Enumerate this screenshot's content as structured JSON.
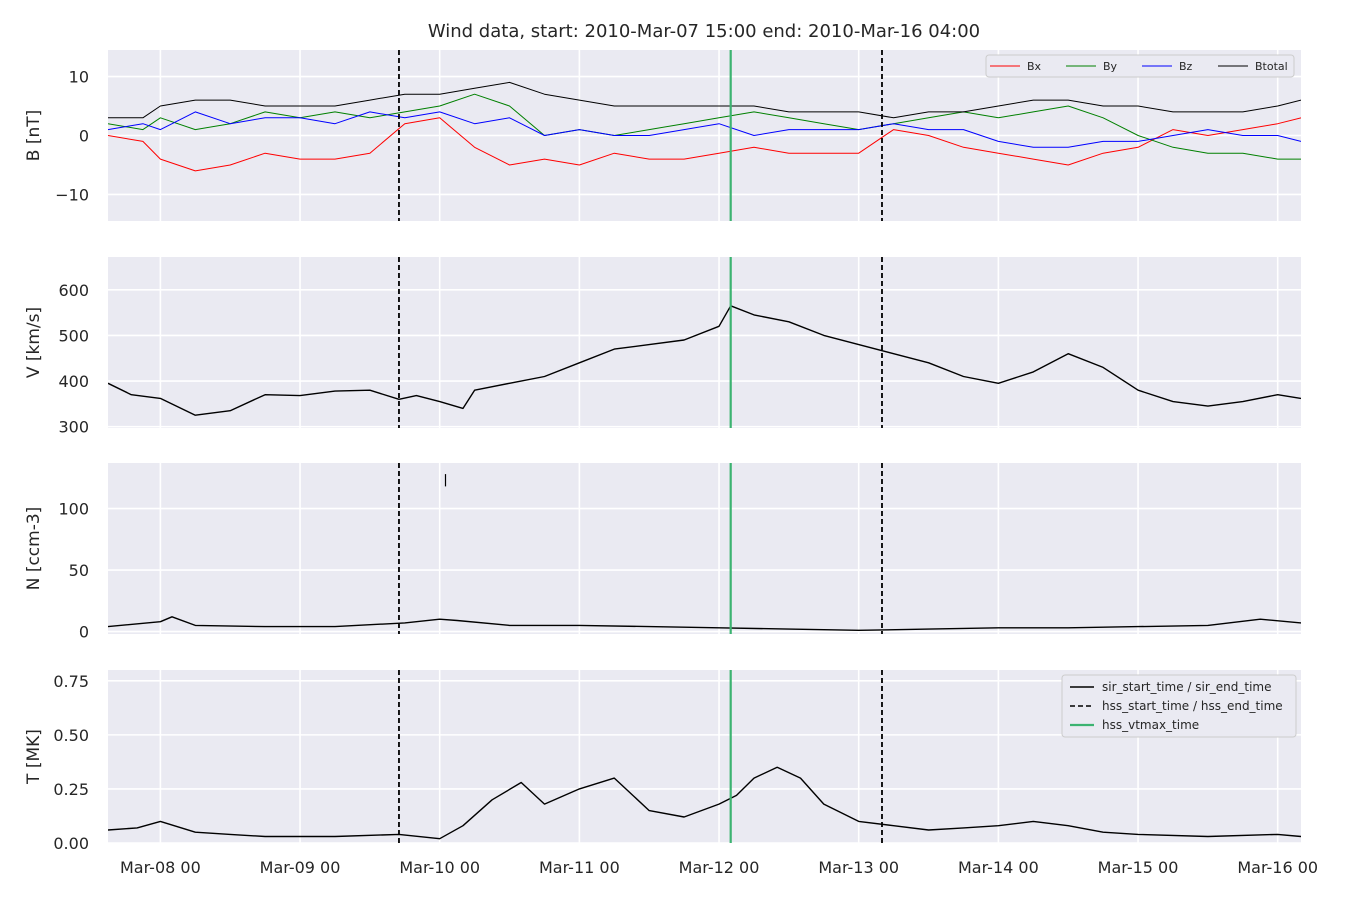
{
  "chart_data": {
    "title": "Wind data, start: 2010-Mar-07 15:00  end: 2010-Mar-16 04:00",
    "x_range": [
      "2010-03-07T15:00",
      "2010-03-16T04:00"
    ],
    "x_ticks": [
      {
        "t": "2010-03-08T00:00",
        "label": "Mar-08 00"
      },
      {
        "t": "2010-03-09T00:00",
        "label": "Mar-09 00"
      },
      {
        "t": "2010-03-10T00:00",
        "label": "Mar-10 00"
      },
      {
        "t": "2010-03-11T00:00",
        "label": "Mar-11 00"
      },
      {
        "t": "2010-03-12T00:00",
        "label": "Mar-12 00"
      },
      {
        "t": "2010-03-13T00:00",
        "label": "Mar-13 00"
      },
      {
        "t": "2010-03-14T00:00",
        "label": "Mar-14 00"
      },
      {
        "t": "2010-03-15T00:00",
        "label": "Mar-15 00"
      },
      {
        "t": "2010-03-16T00:00",
        "label": "Mar-16 00"
      }
    ],
    "vertical_markers": [
      {
        "t": "2010-03-09T17:00",
        "style": "dashed",
        "color": "#000000",
        "group": "hss"
      },
      {
        "t": "2010-03-13T04:00",
        "style": "dashed",
        "color": "#000000",
        "group": "hss"
      },
      {
        "t": "2010-03-12T02:00",
        "style": "solid",
        "color": "#3cb371",
        "group": "vtmax"
      }
    ],
    "panels": [
      {
        "type": "line",
        "ylabel": "B [nT]",
        "ylim": [
          -14.5,
          14.5
        ],
        "yticks": [
          {
            "v": 10,
            "label": "10"
          },
          {
            "v": 0,
            "label": "0"
          },
          {
            "v": -10,
            "label": "−10"
          }
        ],
        "legend": {
          "position": "top-right",
          "layout": "row",
          "entries": [
            "Bx",
            "By",
            "Bz",
            "Btotal"
          ]
        },
        "series": [
          {
            "name": "Bx",
            "color": "#ff0000",
            "width": 1,
            "x": [
              "2010-03-07T15:00",
              "2010-03-07T21:00",
              "2010-03-08T00:00",
              "2010-03-08T06:00",
              "2010-03-08T12:00",
              "2010-03-08T18:00",
              "2010-03-09T00:00",
              "2010-03-09T06:00",
              "2010-03-09T12:00",
              "2010-03-09T18:00",
              "2010-03-10T00:00",
              "2010-03-10T06:00",
              "2010-03-10T12:00",
              "2010-03-10T18:00",
              "2010-03-11T00:00",
              "2010-03-11T06:00",
              "2010-03-11T12:00",
              "2010-03-11T18:00",
              "2010-03-12T00:00",
              "2010-03-12T06:00",
              "2010-03-12T12:00",
              "2010-03-12T18:00",
              "2010-03-13T00:00",
              "2010-03-13T06:00",
              "2010-03-13T12:00",
              "2010-03-13T18:00",
              "2010-03-14T00:00",
              "2010-03-14T06:00",
              "2010-03-14T12:00",
              "2010-03-14T18:00",
              "2010-03-15T00:00",
              "2010-03-15T06:00",
              "2010-03-15T12:00",
              "2010-03-15T18:00",
              "2010-03-16T00:00",
              "2010-03-16T04:00"
            ],
            "values": [
              0,
              -1,
              -4,
              -6,
              -5,
              -3,
              -4,
              -4,
              -3,
              2,
              3,
              -2,
              -5,
              -4,
              -5,
              -3,
              -4,
              -4,
              -3,
              -2,
              -3,
              -3,
              -3,
              1,
              0,
              -2,
              -3,
              -4,
              -5,
              -3,
              -2,
              1,
              0,
              1,
              2,
              3
            ]
          },
          {
            "name": "By",
            "color": "#008000",
            "width": 1,
            "x": [
              "2010-03-07T15:00",
              "2010-03-07T21:00",
              "2010-03-08T00:00",
              "2010-03-08T06:00",
              "2010-03-08T12:00",
              "2010-03-08T18:00",
              "2010-03-09T00:00",
              "2010-03-09T06:00",
              "2010-03-09T12:00",
              "2010-03-09T18:00",
              "2010-03-10T00:00",
              "2010-03-10T06:00",
              "2010-03-10T12:00",
              "2010-03-10T18:00",
              "2010-03-11T00:00",
              "2010-03-11T06:00",
              "2010-03-11T12:00",
              "2010-03-11T18:00",
              "2010-03-12T00:00",
              "2010-03-12T06:00",
              "2010-03-12T12:00",
              "2010-03-12T18:00",
              "2010-03-13T00:00",
              "2010-03-13T06:00",
              "2010-03-13T12:00",
              "2010-03-13T18:00",
              "2010-03-14T00:00",
              "2010-03-14T06:00",
              "2010-03-14T12:00",
              "2010-03-14T18:00",
              "2010-03-15T00:00",
              "2010-03-15T06:00",
              "2010-03-15T12:00",
              "2010-03-15T18:00",
              "2010-03-16T00:00",
              "2010-03-16T04:00"
            ],
            "values": [
              2,
              1,
              3,
              1,
              2,
              4,
              3,
              4,
              3,
              4,
              5,
              7,
              5,
              0,
              1,
              0,
              1,
              2,
              3,
              4,
              3,
              2,
              1,
              2,
              3,
              4,
              3,
              4,
              5,
              3,
              0,
              -2,
              -3,
              -3,
              -4,
              -4
            ]
          },
          {
            "name": "Bz",
            "color": "#0000ff",
            "width": 1,
            "x": [
              "2010-03-07T15:00",
              "2010-03-07T21:00",
              "2010-03-08T00:00",
              "2010-03-08T06:00",
              "2010-03-08T12:00",
              "2010-03-08T18:00",
              "2010-03-09T00:00",
              "2010-03-09T06:00",
              "2010-03-09T12:00",
              "2010-03-09T18:00",
              "2010-03-10T00:00",
              "2010-03-10T06:00",
              "2010-03-10T12:00",
              "2010-03-10T18:00",
              "2010-03-11T00:00",
              "2010-03-11T06:00",
              "2010-03-11T12:00",
              "2010-03-11T18:00",
              "2010-03-12T00:00",
              "2010-03-12T06:00",
              "2010-03-12T12:00",
              "2010-03-12T18:00",
              "2010-03-13T00:00",
              "2010-03-13T06:00",
              "2010-03-13T12:00",
              "2010-03-13T18:00",
              "2010-03-14T00:00",
              "2010-03-14T06:00",
              "2010-03-14T12:00",
              "2010-03-14T18:00",
              "2010-03-15T00:00",
              "2010-03-15T06:00",
              "2010-03-15T12:00",
              "2010-03-15T18:00",
              "2010-03-16T00:00",
              "2010-03-16T04:00"
            ],
            "values": [
              1,
              2,
              1,
              4,
              2,
              3,
              3,
              2,
              4,
              3,
              4,
              2,
              3,
              0,
              1,
              0,
              0,
              1,
              2,
              0,
              1,
              1,
              1,
              2,
              1,
              1,
              -1,
              -2,
              -2,
              -1,
              -1,
              0,
              1,
              0,
              0,
              -1
            ]
          },
          {
            "name": "Btotal",
            "color": "#000000",
            "width": 1,
            "x": [
              "2010-03-07T15:00",
              "2010-03-07T21:00",
              "2010-03-08T00:00",
              "2010-03-08T06:00",
              "2010-03-08T12:00",
              "2010-03-08T18:00",
              "2010-03-09T00:00",
              "2010-03-09T06:00",
              "2010-03-09T12:00",
              "2010-03-09T18:00",
              "2010-03-10T00:00",
              "2010-03-10T06:00",
              "2010-03-10T12:00",
              "2010-03-10T18:00",
              "2010-03-11T00:00",
              "2010-03-11T06:00",
              "2010-03-11T12:00",
              "2010-03-11T18:00",
              "2010-03-12T00:00",
              "2010-03-12T06:00",
              "2010-03-12T12:00",
              "2010-03-12T18:00",
              "2010-03-13T00:00",
              "2010-03-13T06:00",
              "2010-03-13T12:00",
              "2010-03-13T18:00",
              "2010-03-14T00:00",
              "2010-03-14T06:00",
              "2010-03-14T12:00",
              "2010-03-14T18:00",
              "2010-03-15T00:00",
              "2010-03-15T06:00",
              "2010-03-15T12:00",
              "2010-03-15T18:00",
              "2010-03-16T00:00",
              "2010-03-16T04:00"
            ],
            "values": [
              3,
              3,
              5,
              6,
              6,
              5,
              5,
              5,
              6,
              7,
              7,
              8,
              9,
              7,
              6,
              5,
              5,
              5,
              5,
              5,
              4,
              4,
              4,
              3,
              4,
              4,
              5,
              6,
              6,
              5,
              5,
              4,
              4,
              4,
              5,
              6
            ]
          }
        ]
      },
      {
        "type": "line",
        "ylabel": "V [km/s]",
        "ylim": [
          297,
          672
        ],
        "yticks": [
          {
            "v": 600,
            "label": "600"
          },
          {
            "v": 500,
            "label": "500"
          },
          {
            "v": 400,
            "label": "400"
          },
          {
            "v": 300,
            "label": "300"
          }
        ],
        "series": [
          {
            "name": "V",
            "color": "#000000",
            "width": 1.4,
            "x": [
              "2010-03-07T15:00",
              "2010-03-07T19:00",
              "2010-03-08T00:00",
              "2010-03-08T06:00",
              "2010-03-08T12:00",
              "2010-03-08T18:00",
              "2010-03-09T00:00",
              "2010-03-09T06:00",
              "2010-03-09T12:00",
              "2010-03-09T17:00",
              "2010-03-09T20:00",
              "2010-03-10T00:00",
              "2010-03-10T04:00",
              "2010-03-10T06:00",
              "2010-03-10T12:00",
              "2010-03-10T18:00",
              "2010-03-11T00:00",
              "2010-03-11T06:00",
              "2010-03-11T12:00",
              "2010-03-11T18:00",
              "2010-03-12T00:00",
              "2010-03-12T02:00",
              "2010-03-12T06:00",
              "2010-03-12T12:00",
              "2010-03-12T18:00",
              "2010-03-13T00:00",
              "2010-03-13T06:00",
              "2010-03-13T12:00",
              "2010-03-13T18:00",
              "2010-03-14T00:00",
              "2010-03-14T06:00",
              "2010-03-14T12:00",
              "2010-03-14T18:00",
              "2010-03-15T00:00",
              "2010-03-15T06:00",
              "2010-03-15T12:00",
              "2010-03-15T18:00",
              "2010-03-16T00:00",
              "2010-03-16T04:00"
            ],
            "values": [
              395,
              370,
              362,
              325,
              335,
              370,
              368,
              378,
              380,
              360,
              368,
              355,
              340,
              380,
              395,
              410,
              440,
              470,
              480,
              490,
              520,
              565,
              545,
              530,
              500,
              480,
              460,
              440,
              410,
              395,
              420,
              460,
              430,
              380,
              355,
              345,
              355,
              370,
              362
            ]
          }
        ]
      },
      {
        "type": "line",
        "ylabel": "N [ccm-3]",
        "ylim": [
          -2,
          137
        ],
        "yticks": [
          {
            "v": 100,
            "label": "100"
          },
          {
            "v": 50,
            "label": "50"
          },
          {
            "v": 0,
            "label": "0"
          }
        ],
        "series": [
          {
            "name": "N",
            "color": "#000000",
            "width": 1.4,
            "x": [
              "2010-03-07T15:00",
              "2010-03-08T00:00",
              "2010-03-08T02:00",
              "2010-03-08T06:00",
              "2010-03-08T18:00",
              "2010-03-09T06:00",
              "2010-03-09T18:00",
              "2010-03-10T00:00",
              "2010-03-10T03:00",
              "2010-03-10T12:00",
              "2010-03-11T00:00",
              "2010-03-11T12:00",
              "2010-03-12T00:00",
              "2010-03-12T12:00",
              "2010-03-13T00:00",
              "2010-03-13T12:00",
              "2010-03-14T00:00",
              "2010-03-14T12:00",
              "2010-03-15T00:00",
              "2010-03-15T12:00",
              "2010-03-15T21:00",
              "2010-03-16T04:00"
            ],
            "values": [
              4,
              8,
              12,
              5,
              4,
              4,
              7,
              10,
              9,
              5,
              5,
              4,
              3,
              2,
              1,
              2,
              3,
              3,
              4,
              5,
              10,
              7
            ]
          },
          {
            "name": "N spike",
            "color": "#000000",
            "width": 1.2,
            "x": [
              "2010-03-10T01:00",
              "2010-03-10T01:00"
            ],
            "values": [
              118,
              128
            ]
          }
        ]
      },
      {
        "type": "line",
        "ylabel": "T [MK]",
        "ylim": [
          0,
          0.8
        ],
        "yticks": [
          {
            "v": 0.75,
            "label": "0.75"
          },
          {
            "v": 0.5,
            "label": "0.50"
          },
          {
            "v": 0.25,
            "label": "0.25"
          },
          {
            "v": 0,
            "label": "0.00"
          }
        ],
        "legend": {
          "position": "top-right",
          "entries": [
            {
              "label": "sir_start_time / sir_end_time",
              "style": "solid",
              "color": "#000000"
            },
            {
              "label": "hss_start_time / hss_end_time",
              "style": "dashed",
              "color": "#000000"
            },
            {
              "label": "hss_vtmax_time",
              "style": "solid",
              "color": "#3cb371"
            }
          ]
        },
        "series": [
          {
            "name": "T",
            "color": "#000000",
            "width": 1.4,
            "x": [
              "2010-03-07T15:00",
              "2010-03-07T20:00",
              "2010-03-08T00:00",
              "2010-03-08T06:00",
              "2010-03-08T12:00",
              "2010-03-08T18:00",
              "2010-03-09T06:00",
              "2010-03-09T17:00",
              "2010-03-10T00:00",
              "2010-03-10T04:00",
              "2010-03-10T09:00",
              "2010-03-10T14:00",
              "2010-03-10T18:00",
              "2010-03-11T00:00",
              "2010-03-11T06:00",
              "2010-03-11T12:00",
              "2010-03-11T18:00",
              "2010-03-12T00:00",
              "2010-03-12T03:00",
              "2010-03-12T06:00",
              "2010-03-12T10:00",
              "2010-03-12T14:00",
              "2010-03-12T18:00",
              "2010-03-13T00:00",
              "2010-03-13T06:00",
              "2010-03-13T12:00",
              "2010-03-13T18:00",
              "2010-03-14T00:00",
              "2010-03-14T06:00",
              "2010-03-14T12:00",
              "2010-03-14T18:00",
              "2010-03-15T00:00",
              "2010-03-15T12:00",
              "2010-03-16T00:00",
              "2010-03-16T04:00"
            ],
            "values": [
              0.06,
              0.07,
              0.1,
              0.05,
              0.04,
              0.03,
              0.03,
              0.04,
              0.02,
              0.08,
              0.2,
              0.28,
              0.18,
              0.25,
              0.3,
              0.15,
              0.12,
              0.18,
              0.22,
              0.3,
              0.35,
              0.3,
              0.18,
              0.1,
              0.08,
              0.06,
              0.07,
              0.08,
              0.1,
              0.08,
              0.05,
              0.04,
              0.03,
              0.04,
              0.03
            ]
          }
        ]
      }
    ]
  }
}
